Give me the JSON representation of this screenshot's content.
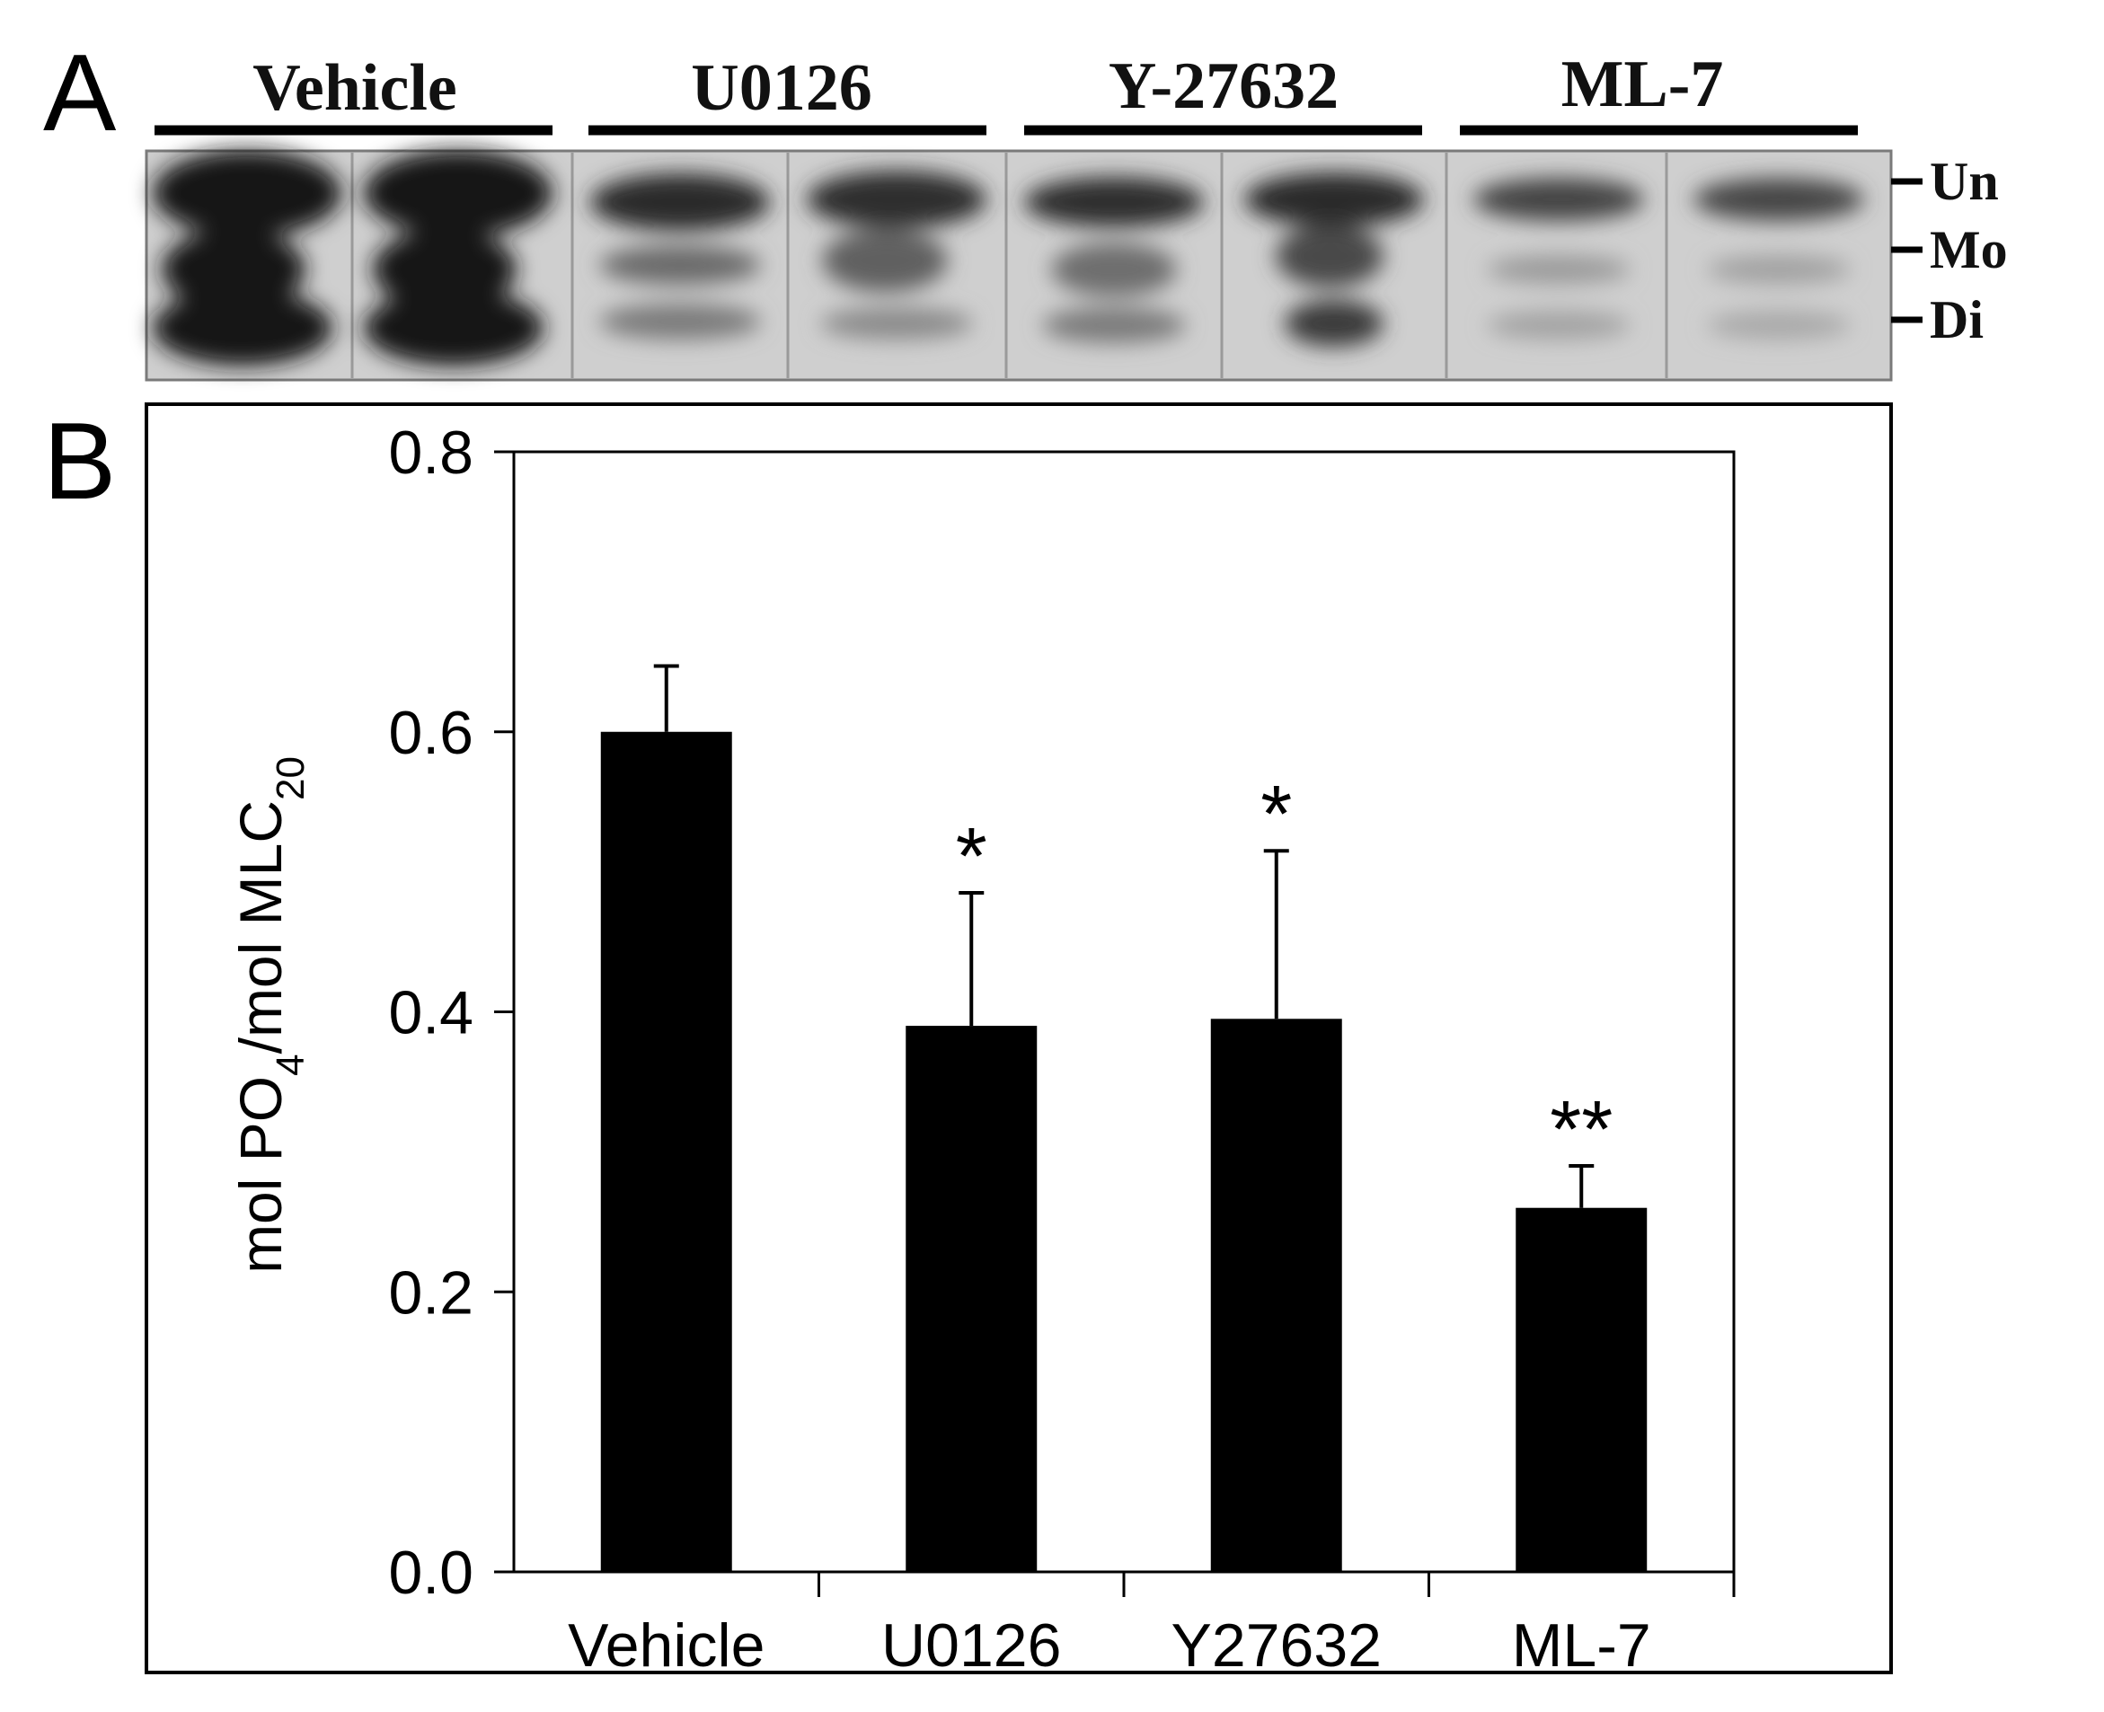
{
  "panel_a": {
    "letter": "A",
    "groups": [
      "Vehicle",
      "U0126",
      "Y-27632",
      "ML-7"
    ],
    "band_labels": [
      "Un",
      "Mo",
      "Di"
    ]
  },
  "panel_b": {
    "letter": "B"
  },
  "chart_data": {
    "type": "bar",
    "categories": [
      "Vehicle",
      "U0126",
      "Y27632",
      "ML-7"
    ],
    "values": [
      0.6,
      0.39,
      0.395,
      0.26
    ],
    "errors": [
      0.047,
      0.095,
      0.12,
      0.03
    ],
    "significance": [
      "",
      "*",
      "*",
      "**"
    ],
    "ylabel": "mol PO4/mol MLC20",
    "ylabel_parts": {
      "a": "mol PO",
      "sub1": "4",
      "b": "/mol MLC",
      "sub2": "20"
    },
    "ylim": [
      0.0,
      0.8
    ],
    "yticks": [
      "0.0",
      "0.2",
      "0.4",
      "0.6",
      "0.8"
    ],
    "bar_color": "#000000",
    "grid": false,
    "legend": "none"
  }
}
